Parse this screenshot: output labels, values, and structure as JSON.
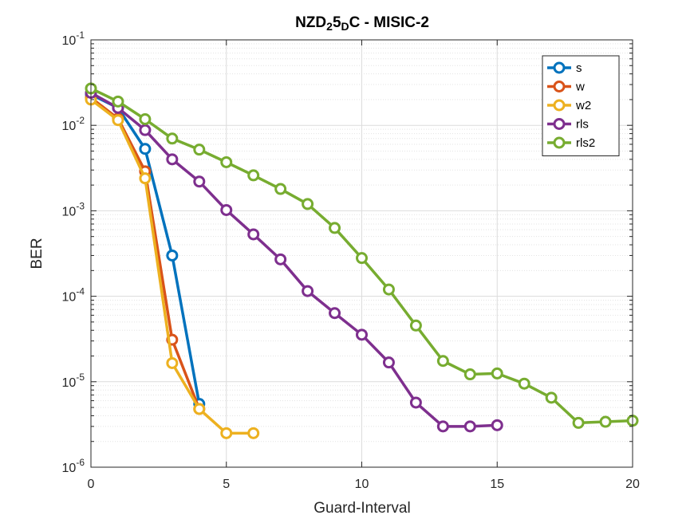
{
  "chart_data": {
    "type": "line",
    "title": {
      "parts": [
        {
          "text": "NZD",
          "pos": "base"
        },
        {
          "text": "2",
          "pos": "sub"
        },
        {
          "text": "5",
          "pos": "base"
        },
        {
          "text": "D",
          "pos": "sub"
        },
        {
          "text": "C - MISIC-2",
          "pos": "base"
        }
      ]
    },
    "xlabel": "Guard-Interval",
    "ylabel": "BER",
    "xlim": [
      0,
      20
    ],
    "ylim": [
      1e-06,
      0.1
    ],
    "y_scale": "log",
    "grid": true,
    "minor_grid": true,
    "legend_position": "top-right",
    "x_ticks": [
      0,
      5,
      10,
      15,
      20
    ],
    "y_ticks": [
      {
        "value": 1e-06,
        "base": "10",
        "exp": "-6"
      },
      {
        "value": 1e-05,
        "base": "10",
        "exp": "-5"
      },
      {
        "value": 0.0001,
        "base": "10",
        "exp": "-4"
      },
      {
        "value": 0.001,
        "base": "10",
        "exp": "-3"
      },
      {
        "value": 0.01,
        "base": "10",
        "exp": "-2"
      },
      {
        "value": 0.1,
        "base": "10",
        "exp": "-1"
      }
    ],
    "series": [
      {
        "name": "s",
        "color": "#0072BD",
        "x": [
          0,
          1,
          2,
          3,
          4
        ],
        "y": [
          0.023,
          0.016,
          0.0053,
          0.0003,
          5.5e-06
        ]
      },
      {
        "name": "w",
        "color": "#D95319",
        "x": [
          0,
          1,
          2,
          3,
          4
        ],
        "y": [
          0.021,
          0.012,
          0.0029,
          3.1e-05,
          4.8e-06
        ]
      },
      {
        "name": "w2",
        "color": "#EDB120",
        "x": [
          0,
          1,
          2,
          3,
          4,
          5,
          6
        ],
        "y": [
          0.02,
          0.0115,
          0.0024,
          1.65e-05,
          4.8e-06,
          2.5e-06,
          2.5e-06
        ]
      },
      {
        "name": "rls",
        "color": "#7E2F8E",
        "x": [
          0,
          1,
          2,
          3,
          4,
          5,
          6,
          7,
          8,
          9,
          10,
          11,
          12,
          13,
          14,
          15
        ],
        "y": [
          0.024,
          0.016,
          0.0088,
          0.004,
          0.0022,
          0.00102,
          0.00053,
          0.00027,
          0.000115,
          6.35e-05,
          3.55e-05,
          1.68e-05,
          5.7e-06,
          3e-06,
          3e-06,
          3.1e-06
        ]
      },
      {
        "name": "rls2",
        "color": "#77AC30",
        "x": [
          0,
          1,
          2,
          3,
          4,
          5,
          6,
          7,
          8,
          9,
          10,
          11,
          12,
          13,
          14,
          15,
          16,
          17,
          18,
          19,
          20
        ],
        "y": [
          0.027,
          0.019,
          0.0118,
          0.007,
          0.0052,
          0.0037,
          0.0026,
          0.0018,
          0.0012,
          0.00063,
          0.00028,
          0.00012,
          4.55e-05,
          1.75e-05,
          1.22e-05,
          1.25e-05,
          9.5e-06,
          6.5e-06,
          3.3e-06,
          3.4e-06,
          3.5e-06
        ]
      }
    ]
  }
}
